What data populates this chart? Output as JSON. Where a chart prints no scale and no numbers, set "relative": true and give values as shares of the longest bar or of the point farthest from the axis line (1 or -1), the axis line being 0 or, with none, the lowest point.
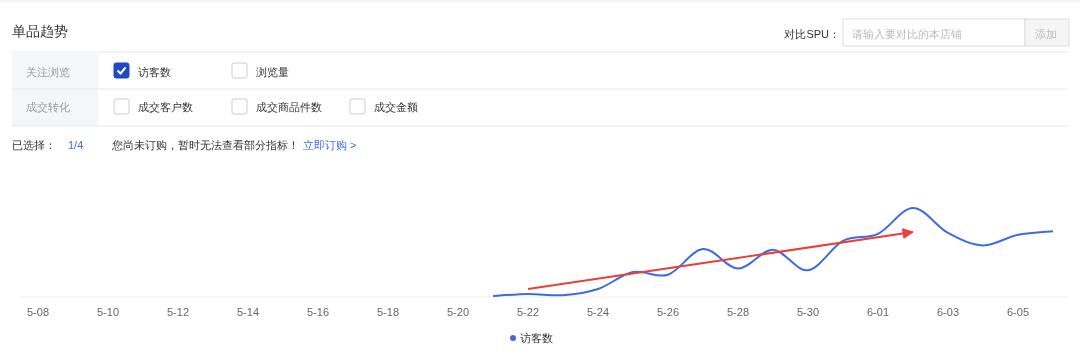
{
  "chart_data": {
    "type": "line",
    "title": "单品趋势",
    "relative": true,
    "categories": [
      "5-08",
      null,
      "5-10",
      null,
      "5-12",
      null,
      "5-14",
      null,
      "5-16",
      null,
      "5-18",
      null,
      "5-20",
      null,
      "5-22",
      null,
      "5-24",
      null,
      "5-26",
      null,
      "5-28",
      null,
      "5-30",
      null,
      "6-01",
      null,
      "6-03",
      null,
      "6-05",
      null
    ],
    "series": [
      {
        "name": "访客数",
        "color": "#3c6be4",
        "values": [
          null,
          null,
          null,
          null,
          null,
          null,
          null,
          null,
          null,
          null,
          null,
          null,
          null,
          0.01,
          0.035,
          0.02,
          0.09,
          0.28,
          0.25,
          0.54,
          0.32,
          0.53,
          0.3,
          0.63,
          0.71,
          1,
          0.72,
          0.58,
          0.7,
          0.74
        ]
      },
      {
        "type": "line",
        "color": "#e8403a",
        "values": [
          null,
          null,
          null,
          null,
          null,
          null,
          null,
          null,
          null,
          null,
          null,
          null,
          null,
          null,
          0.09,
          null,
          null,
          null,
          null,
          null,
          null,
          null,
          null,
          null,
          null,
          0.73,
          null,
          null,
          null,
          null
        ]
      }
    ],
    "legend": "bottom",
    "line_style": "solid",
    "annotations": [
      "对比SPU：",
      "请输入要对比的本店铺",
      "添加",
      "关注浏览",
      "访客数",
      "浏览量",
      "成交转化",
      "成交客户数",
      "成交商品件数",
      "成交金额",
      "已选择：",
      "1/4",
      "您尚未订购，暂时无法查看部分指标！",
      "立即订购 >"
    ]
  }
}
